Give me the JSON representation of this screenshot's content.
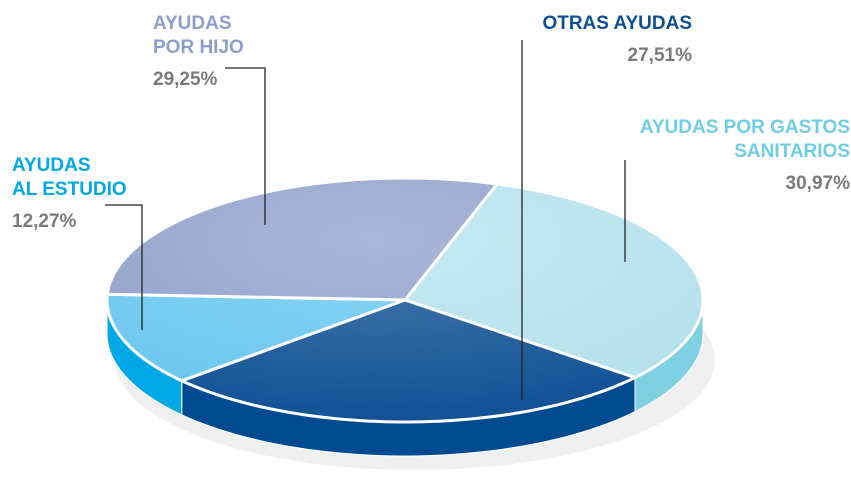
{
  "chart_data": {
    "type": "pie3d",
    "categories": [
      [
        "AYUDAS POR GASTOS",
        "SANITARIOS"
      ],
      [
        "OTRAS AYUDAS"
      ],
      [
        "AYUDAS",
        "AL ESTUDIO"
      ],
      [
        "AYUDAS",
        "POR HIJO"
      ]
    ],
    "values": [
      30.97,
      27.51,
      12.27,
      29.25
    ],
    "value_labels": [
      "30,97%",
      "27,51%",
      "12,27%",
      "29,25%"
    ],
    "colors": [
      "#b3e1ec",
      "#0d4f93",
      "#66c6ef",
      "#8e9ecb"
    ],
    "side_colors": [
      "#7ed0e2",
      "#004a91",
      "#00a8e6",
      "#7080b8"
    ],
    "label_colors": [
      "#6fcde6",
      "#0d4f93",
      "#00a8e6",
      "#8e9ecb"
    ]
  }
}
